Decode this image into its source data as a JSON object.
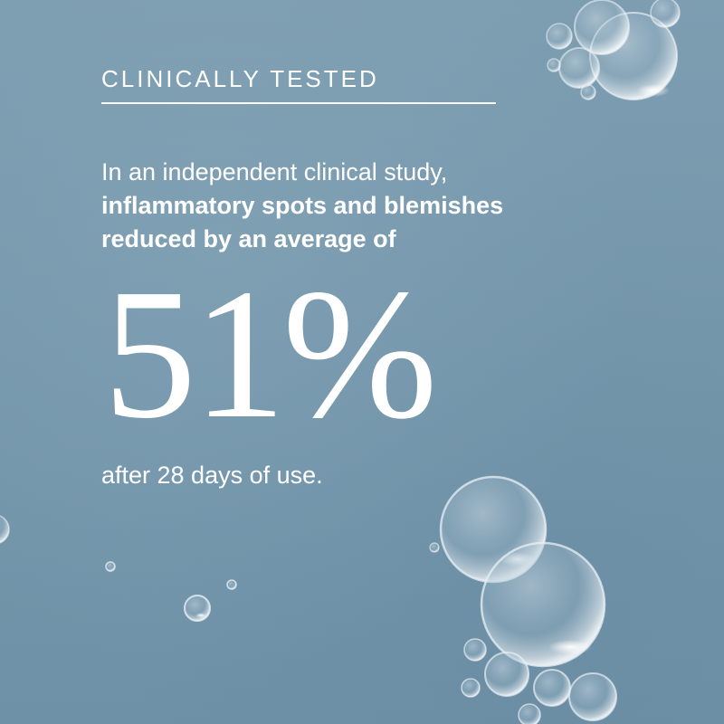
{
  "heading": "CLINICALLY TESTED",
  "intro": {
    "line1": "In an independent clinical study,",
    "line2": "inflammatory spots and blemishes",
    "line3": "reduced by an average of"
  },
  "stat": "51%",
  "footer": "after 28 days of use.",
  "colors": {
    "background": "#7899ad",
    "text": "#ffffff"
  }
}
